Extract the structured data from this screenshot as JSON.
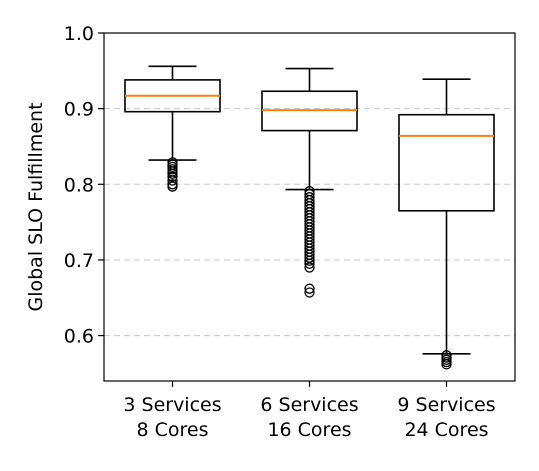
{
  "chart_data": {
    "type": "box",
    "title": "",
    "xlabel": "",
    "ylabel": "Global SLO Fulfillment",
    "ylim": [
      0.54,
      1.0
    ],
    "yticks": [
      "0.6",
      "0.7",
      "0.8",
      "0.9",
      "1.0"
    ],
    "grid": "horizontal dashed",
    "categories": [
      {
        "line1": "3 Services",
        "line2": "8 Cores"
      },
      {
        "line1": "6 Services",
        "line2": "16 Cores"
      },
      {
        "line1": "9 Services",
        "line2": "24 Cores"
      }
    ],
    "boxes": [
      {
        "whisker_low": 0.832,
        "q1": 0.896,
        "median": 0.917,
        "q3": 0.938,
        "whisker_high": 0.956,
        "outliers": [
          0.829,
          0.826,
          0.823,
          0.82,
          0.817,
          0.814,
          0.81,
          0.805,
          0.8,
          0.797
        ]
      },
      {
        "whisker_low": 0.793,
        "q1": 0.871,
        "median": 0.898,
        "q3": 0.923,
        "whisker_high": 0.953,
        "outliers": [
          0.791,
          0.787,
          0.783,
          0.779,
          0.775,
          0.771,
          0.767,
          0.763,
          0.759,
          0.755,
          0.751,
          0.747,
          0.743,
          0.739,
          0.735,
          0.731,
          0.727,
          0.723,
          0.719,
          0.715,
          0.711,
          0.707,
          0.703,
          0.699,
          0.695,
          0.69,
          0.662,
          0.657
        ]
      },
      {
        "whisker_low": 0.576,
        "q1": 0.765,
        "median": 0.864,
        "q3": 0.892,
        "whisker_high": 0.939,
        "outliers": [
          0.574,
          0.571,
          0.568,
          0.565,
          0.562
        ]
      }
    ],
    "colors": {
      "box": "#000000",
      "median": "#ff7f0e",
      "grid": "#c8c8c8"
    }
  }
}
